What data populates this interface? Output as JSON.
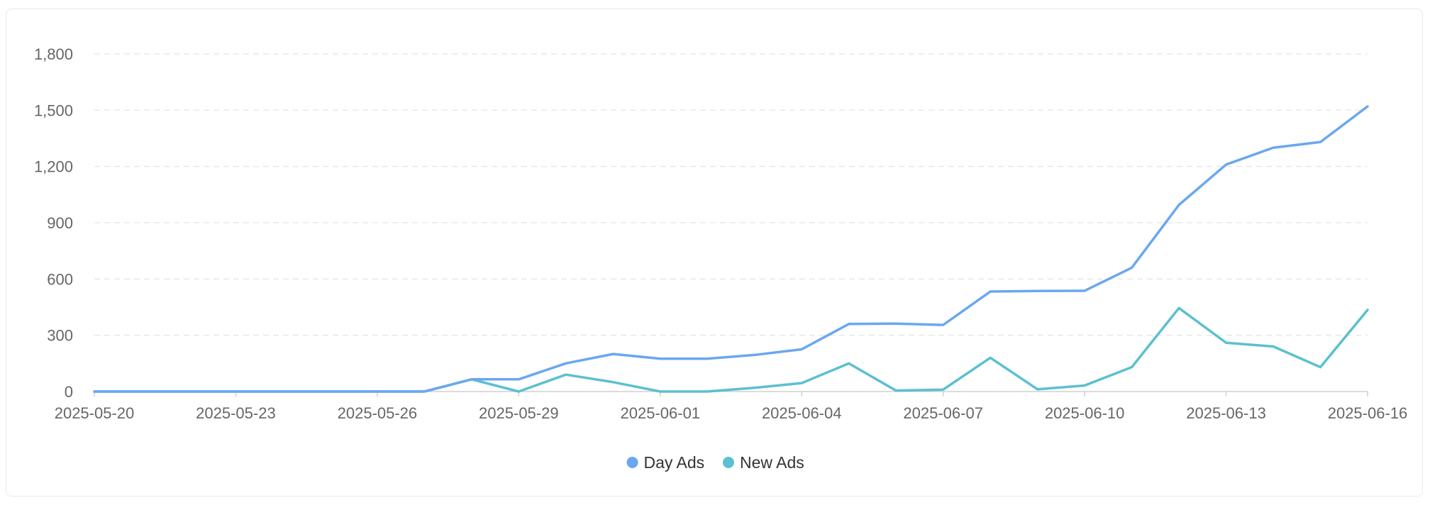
{
  "chart_data": {
    "type": "line",
    "x": [
      "2025-05-20",
      "2025-05-21",
      "2025-05-22",
      "2025-05-23",
      "2025-05-24",
      "2025-05-25",
      "2025-05-26",
      "2025-05-27",
      "2025-05-28",
      "2025-05-29",
      "2025-05-30",
      "2025-05-31",
      "2025-06-01",
      "2025-06-02",
      "2025-06-03",
      "2025-06-04",
      "2025-06-05",
      "2025-06-06",
      "2025-06-07",
      "2025-06-08",
      "2025-06-09",
      "2025-06-10",
      "2025-06-11",
      "2025-06-12",
      "2025-06-13",
      "2025-06-14",
      "2025-06-15",
      "2025-06-16"
    ],
    "x_tick_labels": [
      "2025-05-20",
      "2025-05-23",
      "2025-05-26",
      "2025-05-29",
      "2025-06-01",
      "2025-06-04",
      "2025-06-07",
      "2025-06-10",
      "2025-06-13",
      "2025-06-16"
    ],
    "y_tick_labels": [
      "0",
      "300",
      "600",
      "900",
      "1,200",
      "1,500",
      "1,800"
    ],
    "y_ticks": [
      0,
      300,
      600,
      900,
      1200,
      1500,
      1800
    ],
    "ylim": [
      0,
      1800
    ],
    "grid": true,
    "legend_position": "bottom-center",
    "series": [
      {
        "name": "Day Ads",
        "color": "#6aa7f0",
        "values": [
          0,
          0,
          0,
          0,
          0,
          0,
          0,
          0,
          65,
          65,
          150,
          200,
          175,
          175,
          195,
          225,
          360,
          362,
          355,
          533,
          536,
          537,
          660,
          995,
          1210,
          1300,
          1330,
          1520
        ]
      },
      {
        "name": "New Ads",
        "color": "#5bc0cf",
        "values": [
          0,
          0,
          0,
          0,
          0,
          0,
          0,
          0,
          65,
          0,
          90,
          50,
          0,
          0,
          20,
          45,
          150,
          5,
          10,
          180,
          12,
          32,
          130,
          445,
          260,
          240,
          130,
          435
        ]
      }
    ]
  }
}
